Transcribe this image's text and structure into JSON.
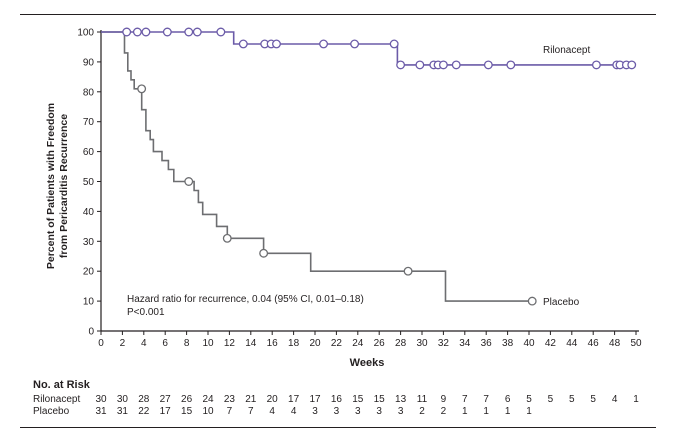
{
  "chart_data": {
    "type": "line",
    "subtype": "kaplan-meier",
    "xlabel": "Weeks",
    "ylabel": [
      "Percent of Patients with Freedom",
      "from Pericarditis Recurrence"
    ],
    "xlim": [
      0,
      50
    ],
    "ylim": [
      0,
      100
    ],
    "xticks": [
      0,
      2,
      4,
      6,
      8,
      10,
      12,
      14,
      16,
      18,
      20,
      22,
      24,
      26,
      28,
      30,
      32,
      34,
      36,
      38,
      40,
      42,
      44,
      46,
      48,
      50
    ],
    "yticks": [
      0,
      10,
      20,
      30,
      40,
      50,
      60,
      70,
      80,
      90,
      100
    ],
    "grid": false,
    "series": [
      {
        "name": "Rilonacept",
        "color": "#6b5ba8",
        "steps": [
          [
            0,
            100
          ],
          [
            12.4,
            100
          ],
          [
            12.4,
            96
          ],
          [
            27.7,
            96
          ],
          [
            27.7,
            89
          ],
          [
            50,
            89
          ]
        ],
        "censored": [
          [
            2.4,
            100
          ],
          [
            3.4,
            100
          ],
          [
            4.2,
            100
          ],
          [
            6.2,
            100
          ],
          [
            8.2,
            100
          ],
          [
            9.0,
            100
          ],
          [
            11.2,
            100
          ],
          [
            13.3,
            96
          ],
          [
            15.3,
            96
          ],
          [
            15.9,
            96
          ],
          [
            16.4,
            96
          ],
          [
            20.8,
            96
          ],
          [
            23.7,
            96
          ],
          [
            27.4,
            96
          ],
          [
            28.0,
            89
          ],
          [
            29.8,
            89
          ],
          [
            31.1,
            89
          ],
          [
            31.5,
            89
          ],
          [
            32.0,
            89
          ],
          [
            33.2,
            89
          ],
          [
            36.2,
            89
          ],
          [
            38.3,
            89
          ],
          [
            46.3,
            89
          ],
          [
            48.2,
            89
          ],
          [
            48.5,
            89
          ],
          [
            49.1,
            89
          ],
          [
            49.6,
            89
          ]
        ]
      },
      {
        "name": "Placebo",
        "color": "#6d6e71",
        "steps": [
          [
            0,
            100
          ],
          [
            2.2,
            100
          ],
          [
            2.2,
            93
          ],
          [
            2.5,
            93
          ],
          [
            2.5,
            87
          ],
          [
            2.8,
            87
          ],
          [
            2.8,
            84
          ],
          [
            3.1,
            84
          ],
          [
            3.1,
            81
          ],
          [
            3.8,
            81
          ],
          [
            3.8,
            74
          ],
          [
            4.2,
            74
          ],
          [
            4.2,
            67
          ],
          [
            4.6,
            67
          ],
          [
            4.6,
            64
          ],
          [
            4.9,
            64
          ],
          [
            4.9,
            60
          ],
          [
            5.7,
            60
          ],
          [
            5.7,
            57
          ],
          [
            6.3,
            57
          ],
          [
            6.3,
            54
          ],
          [
            6.8,
            54
          ],
          [
            6.8,
            50
          ],
          [
            8.7,
            50
          ],
          [
            8.7,
            47
          ],
          [
            9.1,
            47
          ],
          [
            9.1,
            43
          ],
          [
            9.5,
            43
          ],
          [
            9.5,
            39
          ],
          [
            10.8,
            39
          ],
          [
            10.8,
            35
          ],
          [
            11.8,
            35
          ],
          [
            11.8,
            31
          ],
          [
            15.2,
            31
          ],
          [
            15.2,
            26
          ],
          [
            19.6,
            26
          ],
          [
            19.6,
            20
          ],
          [
            32.2,
            20
          ],
          [
            32.2,
            10
          ],
          [
            40.3,
            10
          ]
        ],
        "censored": [
          [
            3.8,
            81
          ],
          [
            8.2,
            50
          ],
          [
            11.8,
            31
          ],
          [
            15.2,
            26
          ],
          [
            28.7,
            20
          ],
          [
            40.3,
            10
          ]
        ]
      }
    ],
    "series_labels": {
      "rilonacept": "Rilonacept",
      "placebo": "Placebo"
    },
    "annotation": [
      "Hazard ratio for recurrence, 0.04 (95% CI, 0.01–0.18)",
      "P<0.001"
    ],
    "risk_table": {
      "title": "No. at Risk",
      "rows": [
        {
          "label": "Rilonacept",
          "values": [
            "30",
            "30",
            "28",
            "27",
            "26",
            "24",
            "23",
            "21",
            "20",
            "17",
            "17",
            "16",
            "15",
            "15",
            "13",
            "11",
            "9",
            "7",
            "7",
            "6",
            "5",
            "5",
            "5",
            "5",
            "4",
            "1"
          ]
        },
        {
          "label": "Placebo",
          "values": [
            "31",
            "31",
            "22",
            "17",
            "15",
            "10",
            "7",
            "7",
            "4",
            "4",
            "3",
            "3",
            "3",
            "3",
            "3",
            "2",
            "2",
            "1",
            "1",
            "1",
            "1",
            "",
            "",
            "",
            "",
            ""
          ]
        }
      ]
    }
  }
}
